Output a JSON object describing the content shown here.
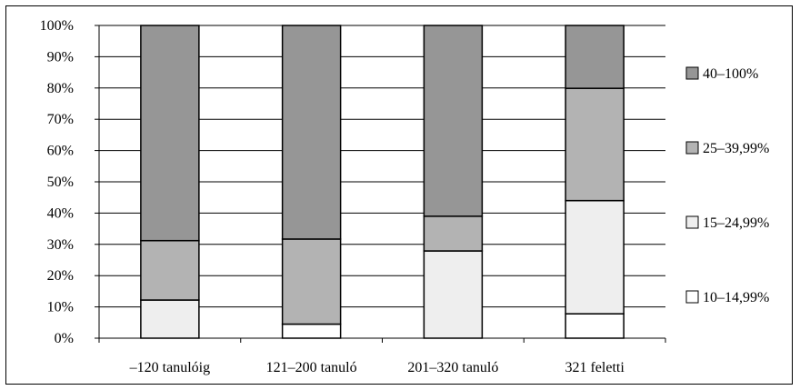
{
  "chart_data": {
    "type": "bar",
    "stacked": true,
    "percent_stacked": true,
    "categories": [
      "–120 tanulóig",
      "121–200 tanuló",
      "201–320 tanuló",
      "321 feletti"
    ],
    "series": [
      {
        "name": "10–14,99%",
        "color": "#ffffff",
        "values": [
          0,
          4.5,
          0,
          7.8
        ]
      },
      {
        "name": "15–24,99%",
        "color": "#eeeeee",
        "values": [
          12.2,
          0,
          27.9,
          36.2
        ]
      },
      {
        "name": "25–39,99%",
        "color": "#b3b3b3",
        "values": [
          19.0,
          27.2,
          11.1,
          35.9
        ]
      },
      {
        "name": "40–100%",
        "color": "#969696",
        "values": [
          68.8,
          68.3,
          61.0,
          20.1
        ]
      }
    ],
    "ylim": [
      0,
      100
    ],
    "yticks": [
      "0%",
      "10%",
      "20%",
      "30%",
      "40%",
      "50%",
      "60%",
      "70%",
      "80%",
      "90%",
      "100%"
    ],
    "grid": true,
    "legend_position": "right"
  }
}
